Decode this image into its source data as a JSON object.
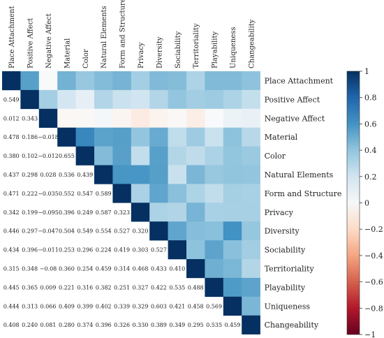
{
  "chart_data": {
    "type": "heatmap",
    "variables": [
      "Place Attachment",
      "Positive Affect",
      "Negative Affect",
      "Material",
      "Color",
      "Natural Elements",
      "Form and Structure",
      "Privacy",
      "Diversity",
      "Sociability",
      "Territoriality",
      "Playability",
      "Uniqueness",
      "Changeability"
    ],
    "matrix": [
      [
        1,
        0.549,
        0.012,
        0.478,
        0.38,
        0.437,
        0.471,
        0.342,
        0.446,
        0.434,
        0.315,
        0.445,
        0.444,
        0.408
      ],
      [
        0.549,
        1,
        0.343,
        0.186,
        0.102,
        0.298,
        0.222,
        0.199,
        0.297,
        0.396,
        0.348,
        0.365,
        0.313,
        0.24
      ],
      [
        0.012,
        0.343,
        1,
        -0.018,
        -0.012,
        0.028,
        -0.035,
        -0.095,
        -0.047,
        -0.011,
        -0.08,
        0.009,
        0.066,
        0.081
      ],
      [
        0.478,
        0.186,
        -0.018,
        1,
        0.655,
        0.536,
        0.552,
        0.396,
        0.504,
        0.253,
        0.36,
        0.221,
        0.409,
        0.28
      ],
      [
        0.38,
        0.102,
        -0.012,
        0.655,
        1,
        0.439,
        0.547,
        0.249,
        0.549,
        0.296,
        0.254,
        0.316,
        0.399,
        0.374
      ],
      [
        0.437,
        0.298,
        0.028,
        0.536,
        0.439,
        1,
        0.589,
        0.587,
        0.554,
        0.224,
        0.459,
        0.382,
        0.402,
        0.396
      ],
      [
        0.471,
        0.222,
        -0.035,
        0.552,
        0.547,
        0.589,
        1,
        0.323,
        0.527,
        0.419,
        0.314,
        0.251,
        0.339,
        0.326
      ],
      [
        0.342,
        0.199,
        -0.095,
        0.396,
        0.249,
        0.587,
        0.323,
        1,
        0.32,
        0.303,
        0.468,
        0.327,
        0.329,
        0.33
      ],
      [
        0.446,
        0.297,
        -0.047,
        0.504,
        0.549,
        0.554,
        0.527,
        0.32,
        1,
        0.527,
        0.433,
        0.422,
        0.603,
        0.389
      ],
      [
        0.434,
        0.396,
        -0.011,
        0.253,
        0.296,
        0.224,
        0.419,
        0.303,
        0.527,
        1,
        0.41,
        0.535,
        0.421,
        0.349
      ],
      [
        0.315,
        0.348,
        -0.08,
        0.36,
        0.254,
        0.459,
        0.314,
        0.468,
        0.433,
        0.41,
        1,
        0.488,
        0.458,
        0.295
      ],
      [
        0.445,
        0.365,
        0.009,
        0.221,
        0.316,
        0.382,
        0.251,
        0.327,
        0.422,
        0.535,
        0.488,
        1,
        0.569,
        0.535
      ],
      [
        0.444,
        0.313,
        0.066,
        0.409,
        0.399,
        0.402,
        0.339,
        0.329,
        0.603,
        0.421,
        0.458,
        0.569,
        1,
        0.459
      ],
      [
        0.408,
        0.24,
        0.081,
        0.28,
        0.374,
        0.396,
        0.326,
        0.33,
        0.389,
        0.349,
        0.295,
        0.535,
        0.459,
        1
      ]
    ],
    "lower_triangle_labels": [
      [
        "0.549"
      ],
      [
        "0.012",
        "0.343"
      ],
      [
        "0.478",
        "0.186",
        "−0.018"
      ],
      [
        "0.380",
        "0.102",
        "−0.012",
        "0.655"
      ],
      [
        "0.437",
        "0.298",
        "0.028",
        "0.536",
        "0.439"
      ],
      [
        "0.471",
        "0.222",
        "−0.035",
        "0.552",
        "0.547",
        "0.589"
      ],
      [
        "0.342",
        "0.199",
        "−0.095",
        "0.396",
        "0.249",
        "0.587",
        "0.323"
      ],
      [
        "0.446",
        "0.297",
        "−0.047",
        "0.504",
        "0.549",
        "0.554",
        "0.527",
        "0.320"
      ],
      [
        "0.434",
        "0.396",
        "−0.011",
        "0.253",
        "0.296",
        "0.224",
        "0.419",
        "0.303",
        "0.527"
      ],
      [
        "0.315",
        "0.348",
        "−0.08",
        "0.360",
        "0.254",
        "0.459",
        "0.314",
        "0.468",
        "0.433",
        "0.410"
      ],
      [
        "0.445",
        "0.365",
        "0.009",
        "0.221",
        "0.316",
        "0.382",
        "0.251",
        "0.327",
        "0.422",
        "0.535",
        "0.488"
      ],
      [
        "0.444",
        "0.313",
        "0.066",
        "0.409",
        "0.399",
        "0.402",
        "0.339",
        "0.329",
        "0.603",
        "0.421",
        "0.458",
        "0.569"
      ],
      [
        "0.408",
        "0.240",
        "0.081",
        "0.280",
        "0.374",
        "0.396",
        "0.326",
        "0.330",
        "0.389",
        "0.349",
        "0.295",
        "0.535",
        "0.459"
      ]
    ],
    "colorbar": {
      "range": [
        -1,
        1
      ],
      "ticks": [
        "1",
        "0.8",
        "0.6",
        "0.4",
        "0.2",
        "0",
        "−0.2",
        "−0.4",
        "−0.6",
        "−0.8",
        "−1"
      ],
      "colors": {
        "negative": "#67001f",
        "zero": "#ffffff",
        "positive": "#053061"
      }
    },
    "display": "upper triangle colored cells, lower triangle numeric values"
  }
}
